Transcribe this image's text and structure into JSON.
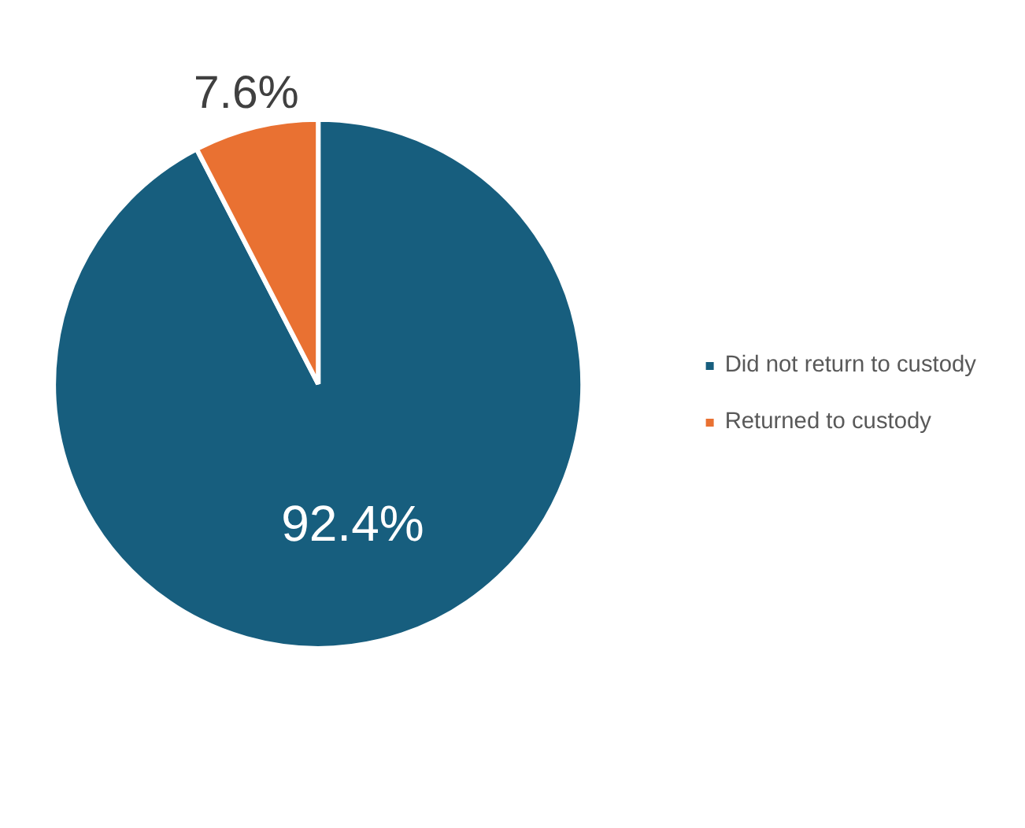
{
  "chart_data": {
    "type": "pie",
    "categories": [
      "Did not return to custody",
      "Returned to custody"
    ],
    "values": [
      92.4,
      7.6
    ],
    "colors": [
      "#175e7e",
      "#e97132"
    ],
    "value_labels": [
      "92.4%",
      "7.6%"
    ],
    "legend": "right"
  }
}
